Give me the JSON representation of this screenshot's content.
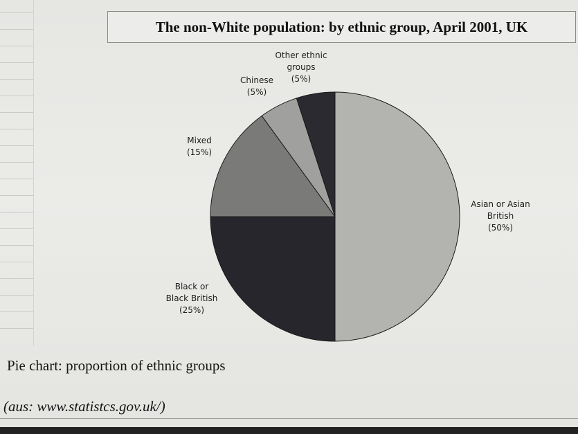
{
  "chart_data": {
    "type": "pie",
    "title": "The non-White population: by ethnic group, April 2001, UK",
    "slices": [
      {
        "line1": "Asian or Asian",
        "line2": "British",
        "pct": "(50%)",
        "value": 50,
        "color": "#b3b3b0"
      },
      {
        "line1": "Black or",
        "line2": "Black British",
        "pct": "(25%)",
        "value": 25,
        "color": "#27262c"
      },
      {
        "line1": "Mixed",
        "line2": "",
        "pct": "(15%)",
        "value": 15,
        "color": "#7a7a78"
      },
      {
        "line1": "Chinese",
        "line2": "",
        "pct": "(5%)",
        "value": 5,
        "color": "#a0a09e"
      },
      {
        "line1": "Other ethnic",
        "line2": "groups",
        "pct": "(5%)",
        "value": 5,
        "color": "#2b2a30"
      }
    ]
  },
  "caption": "Pie chart: proportion of ethnic groups",
  "source": "(aus: www.statistcs.gov.uk/)"
}
